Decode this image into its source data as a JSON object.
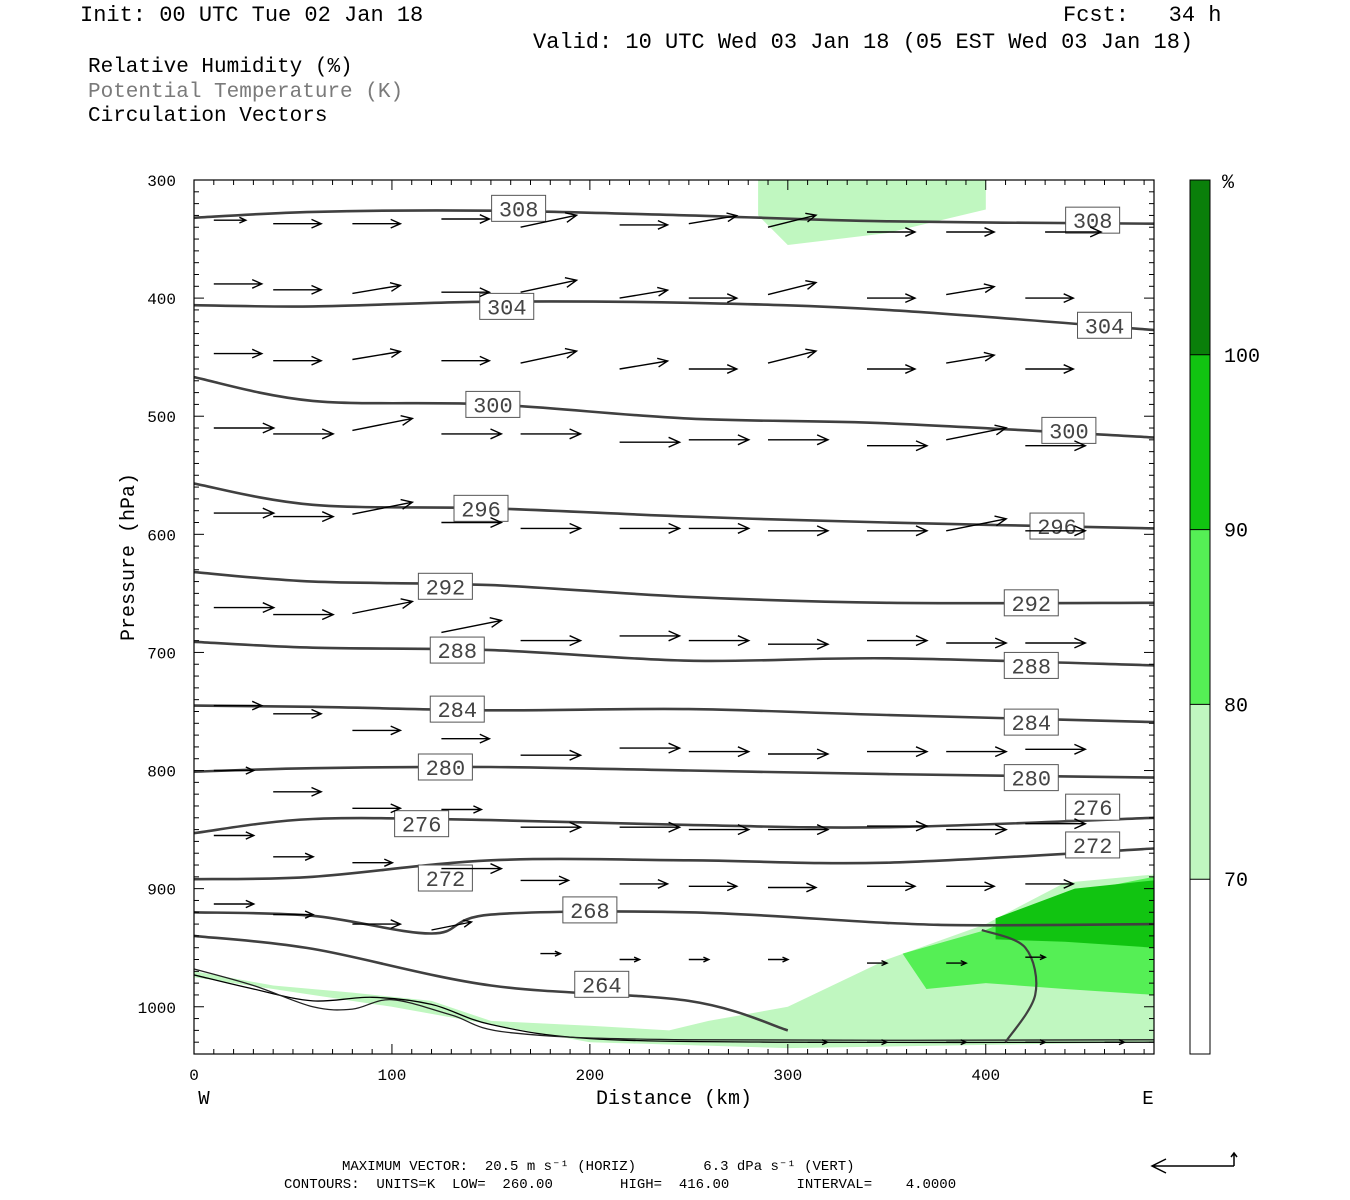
{
  "header": {
    "init": "Init: 00 UTC Tue 02 Jan 18",
    "fcst": "Fcst:   34 h",
    "valid": "Valid: 10 UTC Wed 03 Jan 18 (05 EST Wed 03 Jan 18)"
  },
  "legend": {
    "rh": "Relative Humidity (%)",
    "theta": "Potential Temperature (K)",
    "vectors": "Circulation Vectors"
  },
  "footer": {
    "max_vector": "MAXIMUM VECTOR:  20.5 m s⁻¹ (HORIZ)        6.3 dPa s⁻¹ (VERT)",
    "contours": "CONTOURS:  UNITS=K  LOW=  260.00        HIGH=  416.00        INTERVAL=    4.0000"
  },
  "colors": {
    "rh70": "#c0f7c0",
    "rh80": "#55ef55",
    "rh90": "#11c411",
    "rh100": "#0a7f0a",
    "contour": "#404040"
  },
  "chart_data": {
    "type": "contour",
    "xlabel": "Distance (km)",
    "ylabel": "Pressure (hPa)",
    "xlim": [
      0,
      485
    ],
    "ylim": [
      1040,
      300
    ],
    "x_ticks": [
      0,
      100,
      200,
      300,
      400
    ],
    "y_ticks": [
      300,
      400,
      500,
      600,
      700,
      800,
      900,
      1000
    ],
    "x_end_labels": {
      "left": "W",
      "right": "E"
    },
    "colorbar": {
      "unit": "%",
      "levels": [
        70,
        80,
        90,
        100
      ],
      "colors": [
        "#ffffff",
        "#c0f7c0",
        "#55ef55",
        "#11c411",
        "#0a7f0a"
      ]
    },
    "isentropes": [
      {
        "theta": 308,
        "points": [
          [
            0,
            332
          ],
          [
            60,
            327
          ],
          [
            150,
            326
          ],
          [
            250,
            330
          ],
          [
            350,
            335
          ],
          [
            485,
            337
          ]
        ],
        "labels": [
          [
            164,
            324
          ],
          [
            454,
            334
          ]
        ]
      },
      {
        "theta": 304,
        "points": [
          [
            0,
            406
          ],
          [
            60,
            407
          ],
          [
            150,
            403
          ],
          [
            250,
            404
          ],
          [
            350,
            410
          ],
          [
            485,
            427
          ]
        ],
        "labels": [
          [
            158,
            407
          ],
          [
            460,
            423
          ]
        ]
      },
      {
        "theta": 300,
        "points": [
          [
            0,
            467
          ],
          [
            60,
            487
          ],
          [
            150,
            490
          ],
          [
            250,
            502
          ],
          [
            350,
            506
          ],
          [
            485,
            518
          ]
        ],
        "labels": [
          [
            151,
            490
          ],
          [
            442,
            512
          ]
        ]
      },
      {
        "theta": 296,
        "points": [
          [
            0,
            557
          ],
          [
            60,
            575
          ],
          [
            150,
            578
          ],
          [
            250,
            585
          ],
          [
            350,
            590
          ],
          [
            485,
            595
          ]
        ],
        "labels": [
          [
            145,
            578
          ],
          [
            436,
            593
          ]
        ]
      },
      {
        "theta": 292,
        "points": [
          [
            0,
            632
          ],
          [
            60,
            640
          ],
          [
            150,
            643
          ],
          [
            250,
            653
          ],
          [
            350,
            658
          ],
          [
            485,
            658
          ]
        ],
        "labels": [
          [
            127,
            644
          ],
          [
            423,
            658
          ]
        ]
      },
      {
        "theta": 288,
        "points": [
          [
            0,
            691
          ],
          [
            60,
            696
          ],
          [
            150,
            698
          ],
          [
            250,
            707
          ],
          [
            350,
            705
          ],
          [
            485,
            711
          ]
        ],
        "labels": [
          [
            133,
            698
          ],
          [
            423,
            711
          ]
        ]
      },
      {
        "theta": 284,
        "points": [
          [
            0,
            745
          ],
          [
            60,
            746
          ],
          [
            150,
            749
          ],
          [
            250,
            748
          ],
          [
            350,
            753
          ],
          [
            485,
            759
          ]
        ],
        "labels": [
          [
            133,
            748
          ],
          [
            423,
            759
          ]
        ]
      },
      {
        "theta": 280,
        "points": [
          [
            0,
            801
          ],
          [
            60,
            798
          ],
          [
            150,
            797
          ],
          [
            250,
            800
          ],
          [
            350,
            803
          ],
          [
            485,
            806
          ]
        ],
        "labels": [
          [
            127,
            797
          ],
          [
            423,
            806
          ]
        ]
      },
      {
        "theta": 276,
        "points": [
          [
            0,
            853
          ],
          [
            60,
            841
          ],
          [
            150,
            842
          ],
          [
            250,
            846
          ],
          [
            350,
            848
          ],
          [
            485,
            840
          ]
        ],
        "labels": [
          [
            115,
            845
          ],
          [
            454,
            831
          ]
        ]
      },
      {
        "theta": 272,
        "points": [
          [
            0,
            892
          ],
          [
            60,
            890
          ],
          [
            150,
            876
          ],
          [
            250,
            876
          ],
          [
            350,
            878
          ],
          [
            485,
            866
          ]
        ],
        "labels": [
          [
            127,
            891
          ],
          [
            454,
            863
          ]
        ]
      },
      {
        "theta": 268,
        "points": [
          [
            0,
            920
          ],
          [
            60,
            923
          ],
          [
            120,
            938
          ],
          [
            150,
            922
          ],
          [
            250,
            920
          ],
          [
            350,
            929
          ],
          [
            400,
            931
          ],
          [
            485,
            930
          ]
        ],
        "labels": [
          [
            200,
            918
          ],
          [
            200,
            918
          ]
        ]
      },
      {
        "theta": 264,
        "points": [
          [
            0,
            940
          ],
          [
            60,
            951
          ],
          [
            150,
            982
          ],
          [
            250,
            995
          ],
          [
            300,
            1020
          ]
        ],
        "labels": [
          [
            206,
            981
          ],
          [
            206,
            981
          ]
        ]
      }
    ],
    "rh_regions": [
      {
        "level": 70,
        "points": [
          [
            285,
            300
          ],
          [
            400,
            300
          ],
          [
            400,
            325
          ],
          [
            350,
            345
          ],
          [
            300,
            355
          ],
          [
            285,
            330
          ]
        ]
      },
      {
        "level": 70,
        "points": [
          [
            0,
            970
          ],
          [
            40,
            982
          ],
          [
            80,
            988
          ],
          [
            120,
            995
          ],
          [
            150,
            1012
          ],
          [
            200,
            1016
          ],
          [
            240,
            1020
          ],
          [
            260,
            1012
          ],
          [
            300,
            1000
          ],
          [
            350,
            960
          ],
          [
            400,
            930
          ],
          [
            440,
            895
          ],
          [
            485,
            888
          ],
          [
            485,
            1030
          ],
          [
            300,
            1035
          ],
          [
            200,
            1030
          ],
          [
            100,
            1000
          ],
          [
            0,
            975
          ]
        ]
      },
      {
        "level": 80,
        "points": [
          [
            358,
            955
          ],
          [
            400,
            935
          ],
          [
            440,
            905
          ],
          [
            485,
            890
          ],
          [
            485,
            990
          ],
          [
            440,
            985
          ],
          [
            400,
            980
          ],
          [
            370,
            985
          ]
        ]
      },
      {
        "level": 90,
        "points": [
          [
            405,
            925
          ],
          [
            445,
            900
          ],
          [
            485,
            893
          ],
          [
            485,
            950
          ],
          [
            440,
            945
          ],
          [
            405,
            943
          ]
        ]
      }
    ],
    "vectors": [
      [
        10,
        334,
        8,
        0
      ],
      [
        40,
        337,
        12,
        0
      ],
      [
        80,
        337,
        12,
        0
      ],
      [
        125,
        333,
        12,
        0
      ],
      [
        165,
        340,
        14,
        -3
      ],
      [
        215,
        338,
        12,
        0
      ],
      [
        250,
        337,
        12,
        -2
      ],
      [
        290,
        340,
        12,
        -3
      ],
      [
        340,
        344,
        12,
        0
      ],
      [
        380,
        344,
        12,
        0
      ],
      [
        430,
        344,
        14,
        0
      ],
      [
        10,
        388,
        12,
        0
      ],
      [
        40,
        393,
        12,
        0
      ],
      [
        80,
        396,
        12,
        -2
      ],
      [
        125,
        395,
        12,
        0
      ],
      [
        165,
        395,
        14,
        -3
      ],
      [
        215,
        400,
        12,
        -2
      ],
      [
        250,
        400,
        12,
        0
      ],
      [
        290,
        397,
        12,
        -3
      ],
      [
        340,
        400,
        12,
        0
      ],
      [
        380,
        397,
        12,
        -2
      ],
      [
        420,
        400,
        12,
        0
      ],
      [
        10,
        447,
        12,
        0
      ],
      [
        40,
        453,
        12,
        0
      ],
      [
        80,
        452,
        12,
        -2
      ],
      [
        125,
        453,
        12,
        0
      ],
      [
        165,
        455,
        14,
        -3
      ],
      [
        215,
        460,
        12,
        -2
      ],
      [
        250,
        460,
        12,
        0
      ],
      [
        290,
        455,
        12,
        -3
      ],
      [
        340,
        460,
        12,
        0
      ],
      [
        380,
        455,
        12,
        -2
      ],
      [
        420,
        460,
        12,
        0
      ],
      [
        10,
        510,
        15,
        0
      ],
      [
        40,
        515,
        15,
        0
      ],
      [
        80,
        512,
        15,
        -3
      ],
      [
        125,
        515,
        15,
        0
      ],
      [
        165,
        515,
        15,
        0
      ],
      [
        215,
        522,
        15,
        0
      ],
      [
        250,
        520,
        15,
        0
      ],
      [
        290,
        520,
        15,
        0
      ],
      [
        340,
        525,
        15,
        0
      ],
      [
        380,
        520,
        15,
        -3
      ],
      [
        420,
        525,
        15,
        0
      ],
      [
        10,
        582,
        15,
        0
      ],
      [
        40,
        585,
        15,
        0
      ],
      [
        80,
        583,
        15,
        -3
      ],
      [
        125,
        590,
        15,
        0
      ],
      [
        165,
        595,
        15,
        0
      ],
      [
        215,
        595,
        15,
        0
      ],
      [
        250,
        595,
        15,
        0
      ],
      [
        290,
        597,
        15,
        0
      ],
      [
        340,
        597,
        15,
        0
      ],
      [
        380,
        597,
        15,
        -3
      ],
      [
        420,
        597,
        15,
        0
      ],
      [
        10,
        662,
        15,
        0
      ],
      [
        40,
        668,
        15,
        0
      ],
      [
        80,
        667,
        15,
        -3
      ],
      [
        125,
        683,
        15,
        -3
      ],
      [
        165,
        690,
        15,
        0
      ],
      [
        215,
        686,
        15,
        0
      ],
      [
        250,
        690,
        15,
        0
      ],
      [
        290,
        693,
        15,
        0
      ],
      [
        340,
        690,
        15,
        0
      ],
      [
        380,
        692,
        15,
        0
      ],
      [
        420,
        692,
        15,
        0
      ],
      [
        10,
        745,
        12,
        0
      ],
      [
        40,
        752,
        12,
        0
      ],
      [
        80,
        766,
        12,
        0
      ],
      [
        125,
        773,
        12,
        0
      ],
      [
        165,
        787,
        15,
        0
      ],
      [
        215,
        781,
        15,
        0
      ],
      [
        250,
        784,
        15,
        0
      ],
      [
        290,
        786,
        15,
        0
      ],
      [
        340,
        784,
        15,
        0
      ],
      [
        380,
        784,
        15,
        0
      ],
      [
        420,
        782,
        15,
        0
      ],
      [
        10,
        800,
        10,
        0
      ],
      [
        40,
        818,
        12,
        0
      ],
      [
        80,
        832,
        12,
        0
      ],
      [
        125,
        833,
        10,
        0
      ],
      [
        165,
        848,
        15,
        0
      ],
      [
        215,
        848,
        15,
        0
      ],
      [
        250,
        850,
        15,
        0
      ],
      [
        290,
        850,
        15,
        0
      ],
      [
        340,
        847,
        15,
        0
      ],
      [
        380,
        850,
        15,
        0
      ],
      [
        420,
        845,
        15,
        0
      ],
      [
        10,
        855,
        10,
        0
      ],
      [
        40,
        873,
        10,
        0
      ],
      [
        80,
        878,
        10,
        0
      ],
      [
        125,
        883,
        15,
        0
      ],
      [
        165,
        893,
        12,
        0
      ],
      [
        215,
        896,
        12,
        0
      ],
      [
        250,
        898,
        12,
        0
      ],
      [
        290,
        899,
        12,
        0
      ],
      [
        340,
        898,
        12,
        0
      ],
      [
        380,
        898,
        12,
        0
      ],
      [
        420,
        896,
        12,
        0
      ],
      [
        10,
        913,
        10,
        0
      ],
      [
        40,
        922,
        10,
        0
      ],
      [
        80,
        930,
        12,
        0
      ],
      [
        120,
        935,
        10,
        -2
      ],
      [
        175,
        955,
        5,
        0
      ],
      [
        215,
        960,
        5,
        0
      ],
      [
        250,
        960,
        5,
        0
      ],
      [
        290,
        960,
        5,
        0
      ],
      [
        340,
        963,
        5,
        0
      ],
      [
        380,
        963,
        5,
        0
      ],
      [
        420,
        958,
        5,
        0
      ],
      [
        310,
        1030,
        5,
        0
      ],
      [
        340,
        1030,
        5,
        0
      ],
      [
        380,
        1030,
        5,
        0
      ],
      [
        420,
        1030,
        5,
        0
      ],
      [
        460,
        1030,
        5,
        0
      ]
    ]
  }
}
